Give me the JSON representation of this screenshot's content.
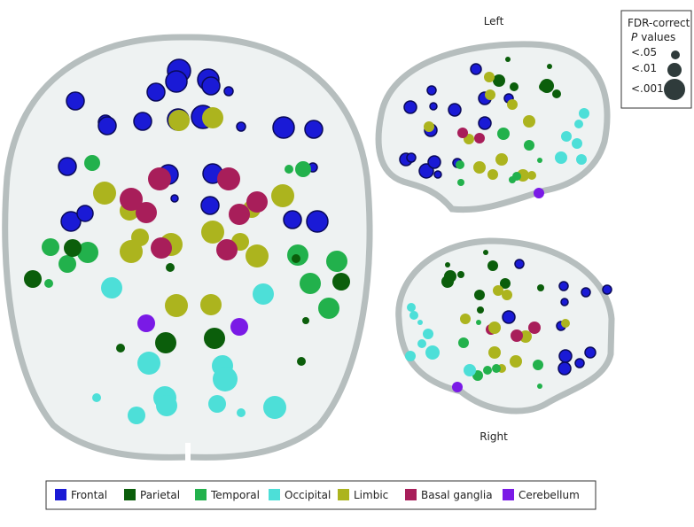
{
  "labels": {
    "left": "Left",
    "right": "Right"
  },
  "p_legend": {
    "title_line1": "FDR-correct",
    "title_italic": "P",
    "title_rest": "values",
    "levels": [
      "<.05",
      "<.01",
      "<.001"
    ]
  },
  "legend": {
    "items": [
      {
        "name": "Frontal",
        "color": "#1a1ad6"
      },
      {
        "name": "Parietal",
        "color": "#0b5e0b"
      },
      {
        "name": "Temporal",
        "color": "#22b14c"
      },
      {
        "name": "Occipital",
        "color": "#4ddfd8"
      },
      {
        "name": "Limbic",
        "color": "#acb41e"
      },
      {
        "name": "Basal ganglia",
        "color": "#a81e5a"
      },
      {
        "name": "Cerebellum",
        "color": "#7a1ae6"
      }
    ]
  }
}
